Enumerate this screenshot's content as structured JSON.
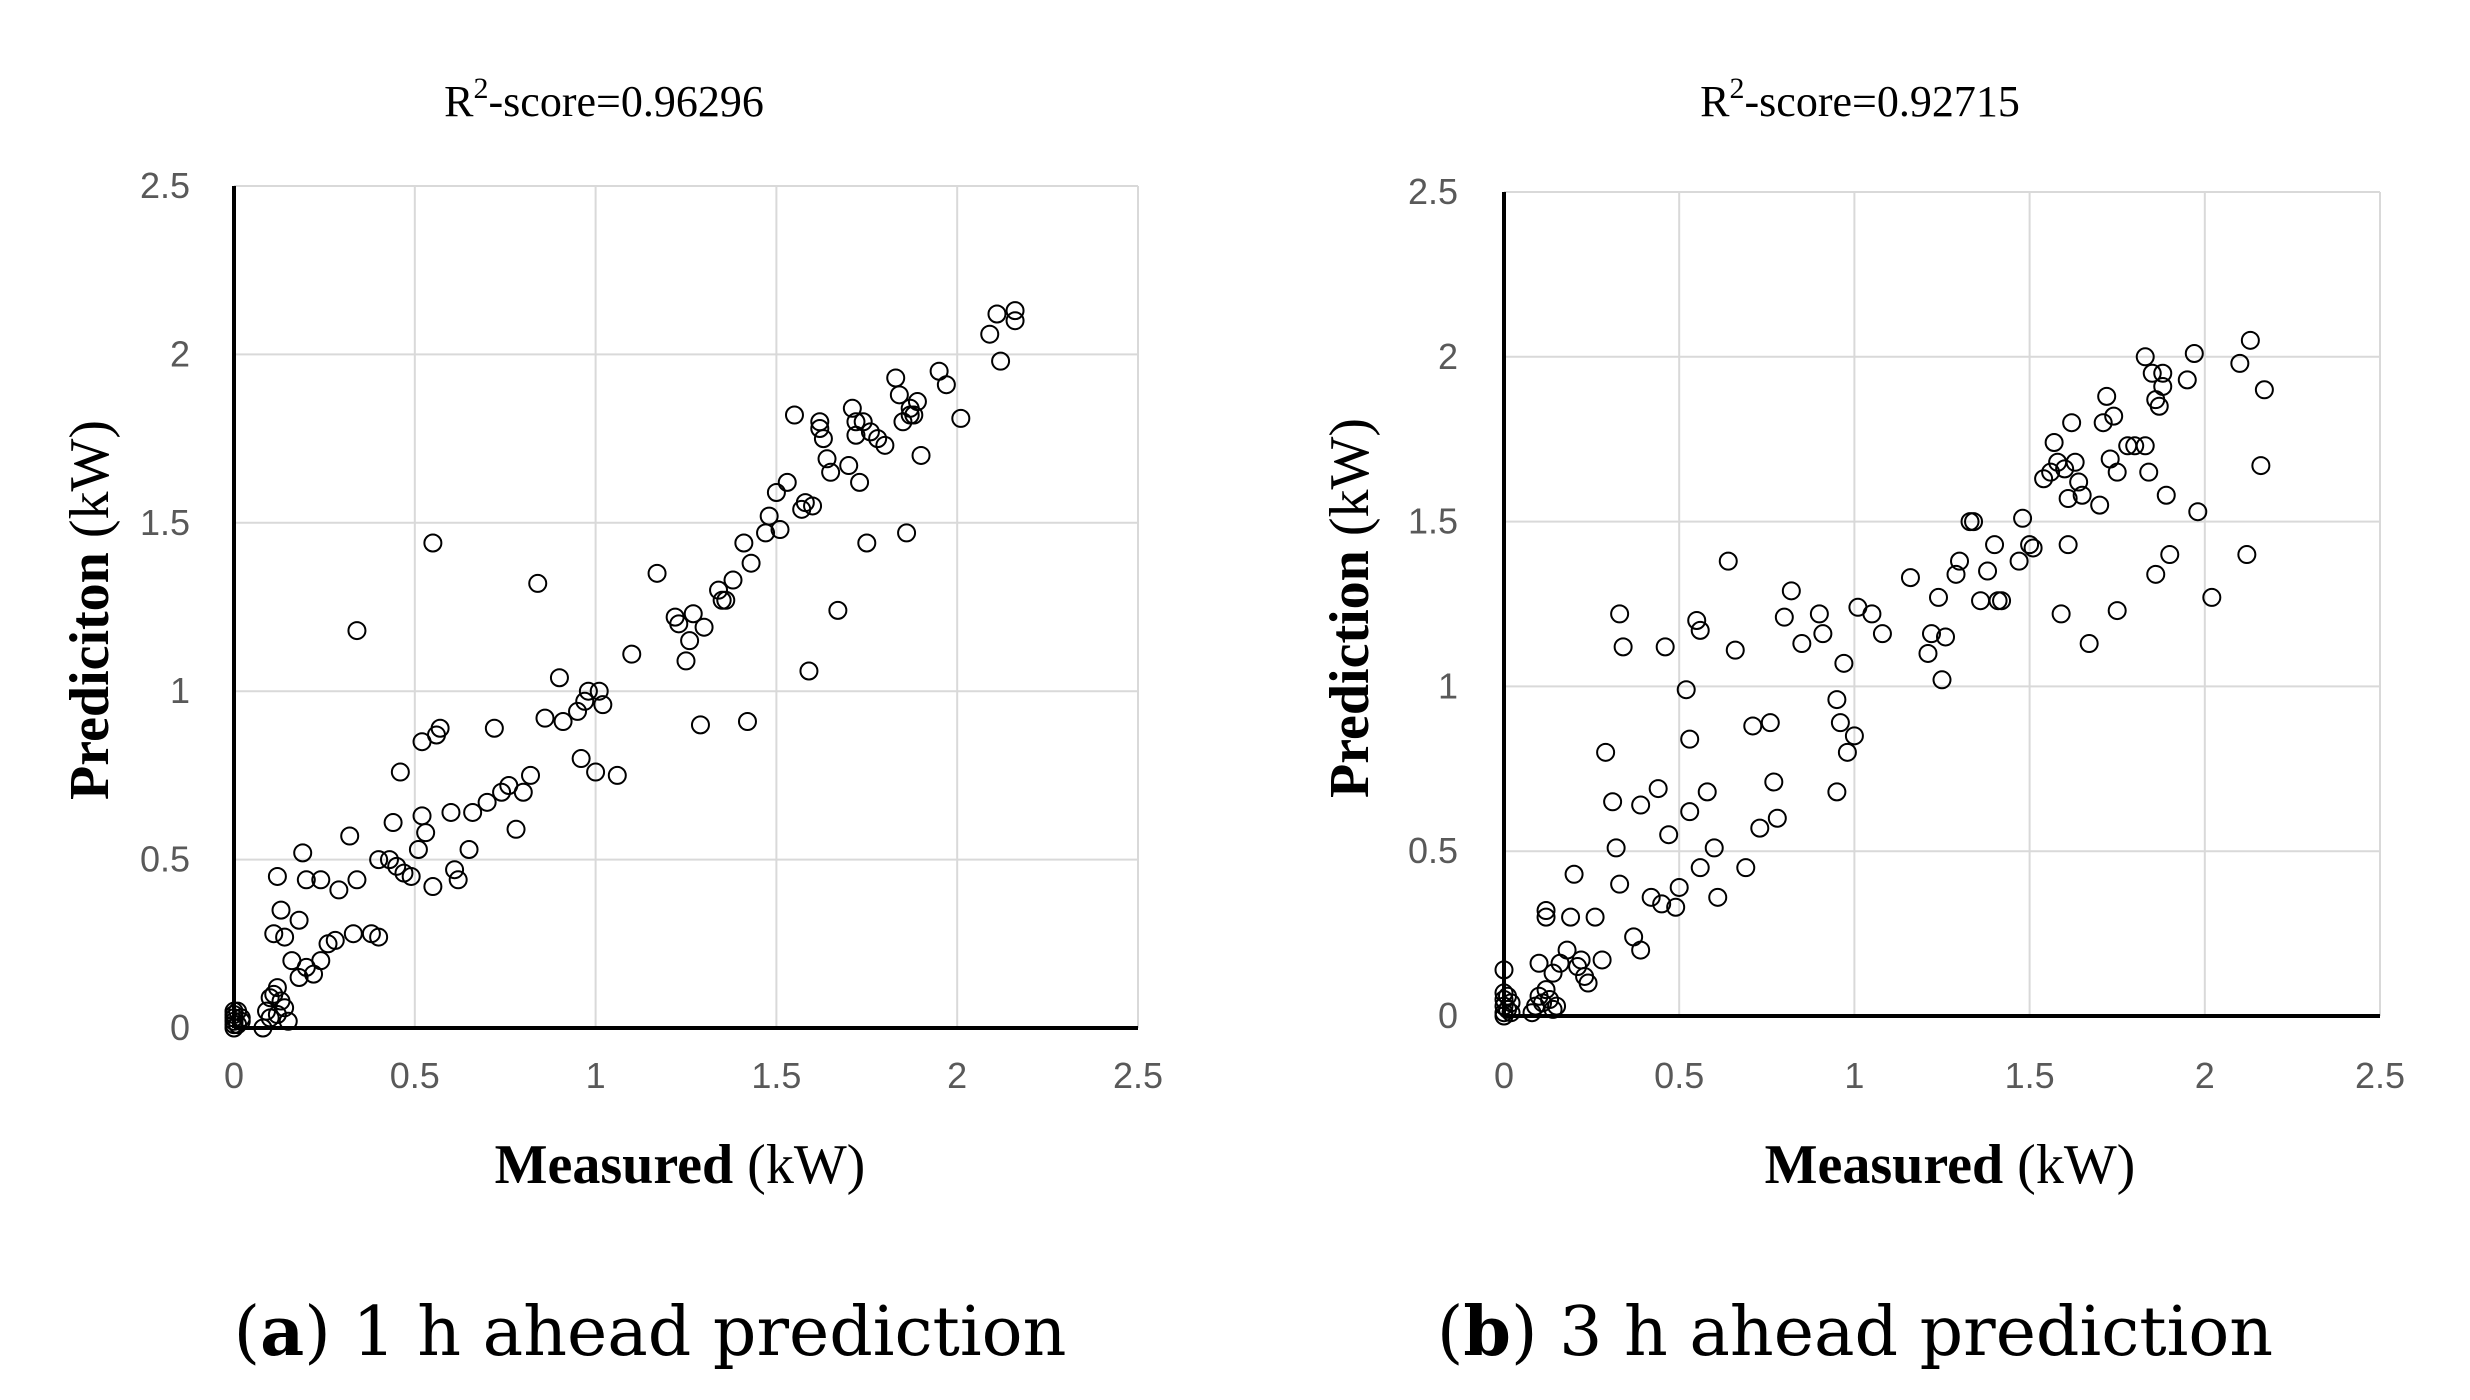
{
  "figure": {
    "captions": [
      {
        "letter": "a",
        "text": " 1 h ahead prediction"
      },
      {
        "letter": "b",
        "text": " 3 h ahead prediction"
      }
    ]
  },
  "chart_data": [
    {
      "type": "scatter",
      "panel": "a",
      "title_main": "R",
      "title_sup": "2",
      "title_rest": "-score=0.96296",
      "xlabel_bold": "Measured",
      "xlabel_unit": " (kW)",
      "ylabel_bold": "Prediciton",
      "ylabel_unit": " (kW)",
      "xlim": [
        0,
        2.5
      ],
      "ylim": [
        0,
        2.5
      ],
      "xticks": [
        "0",
        "0.5",
        "1",
        "1.5",
        "2",
        "2.5"
      ],
      "yticks": [
        "0",
        "0.5",
        "1",
        "1.5",
        "2",
        "2.5"
      ],
      "grid": true,
      "points": [
        [
          0,
          0
        ],
        [
          0,
          0.01
        ],
        [
          0,
          0.02
        ],
        [
          0,
          0.03
        ],
        [
          0,
          0.04
        ],
        [
          0.01,
          0.01
        ],
        [
          0.02,
          0.03
        ],
        [
          0.01,
          0.05
        ],
        [
          0.02,
          0.02
        ],
        [
          0,
          0.05
        ],
        [
          0.08,
          0
        ],
        [
          0.09,
          0.05
        ],
        [
          0.1,
          0.03
        ],
        [
          0.11,
          0.1
        ],
        [
          0.12,
          0.12
        ],
        [
          0.13,
          0.08
        ],
        [
          0.14,
          0.06
        ],
        [
          0.15,
          0.02
        ],
        [
          0.1,
          0.09
        ],
        [
          0.12,
          0.04
        ],
        [
          0.11,
          0.28
        ],
        [
          0.13,
          0.35
        ],
        [
          0.14,
          0.27
        ],
        [
          0.16,
          0.2
        ],
        [
          0.18,
          0.15
        ],
        [
          0.2,
          0.18
        ],
        [
          0.22,
          0.16
        ],
        [
          0.24,
          0.2
        ],
        [
          0.26,
          0.25
        ],
        [
          0.28,
          0.26
        ],
        [
          0.12,
          0.45
        ],
        [
          0.19,
          0.52
        ],
        [
          0.2,
          0.44
        ],
        [
          0.24,
          0.44
        ],
        [
          0.29,
          0.41
        ],
        [
          0.32,
          0.57
        ],
        [
          0.34,
          0.44
        ],
        [
          0.33,
          0.28
        ],
        [
          0.38,
          0.28
        ],
        [
          0.4,
          0.27
        ],
        [
          0.18,
          0.32
        ],
        [
          0.34,
          1.18
        ],
        [
          0.4,
          0.5
        ],
        [
          0.43,
          0.5
        ],
        [
          0.45,
          0.48
        ],
        [
          0.47,
          0.46
        ],
        [
          0.49,
          0.45
        ],
        [
          0.51,
          0.53
        ],
        [
          0.44,
          0.61
        ],
        [
          0.46,
          0.76
        ],
        [
          0.52,
          0.63
        ],
        [
          0.53,
          0.58
        ],
        [
          0.55,
          0.42
        ],
        [
          0.56,
          0.87
        ],
        [
          0.57,
          0.89
        ],
        [
          0.6,
          0.64
        ],
        [
          0.62,
          0.44
        ],
        [
          0.61,
          0.47
        ],
        [
          0.65,
          0.53
        ],
        [
          0.66,
          0.64
        ],
        [
          0.55,
          1.44
        ],
        [
          0.52,
          0.85
        ],
        [
          0.7,
          0.67
        ],
        [
          0.72,
          0.89
        ],
        [
          0.74,
          0.7
        ],
        [
          0.76,
          0.72
        ],
        [
          0.78,
          0.59
        ],
        [
          0.8,
          0.7
        ],
        [
          0.82,
          0.75
        ],
        [
          0.84,
          1.32
        ],
        [
          0.86,
          0.92
        ],
        [
          0.9,
          1.04
        ],
        [
          0.91,
          0.91
        ],
        [
          0.95,
          0.94
        ],
        [
          0.96,
          0.8
        ],
        [
          0.97,
          0.97
        ],
        [
          0.98,
          1.0
        ],
        [
          1.0,
          0.76
        ],
        [
          1.01,
          1.0
        ],
        [
          1.02,
          0.96
        ],
        [
          1.06,
          0.75
        ],
        [
          1.1,
          1.11
        ],
        [
          1.17,
          1.35
        ],
        [
          1.22,
          1.22
        ],
        [
          1.23,
          1.2
        ],
        [
          1.25,
          1.09
        ],
        [
          1.26,
          1.15
        ],
        [
          1.27,
          1.23
        ],
        [
          1.29,
          0.9
        ],
        [
          1.3,
          1.19
        ],
        [
          1.34,
          1.3
        ],
        [
          1.35,
          1.27
        ],
        [
          1.36,
          1.27
        ],
        [
          1.38,
          1.33
        ],
        [
          1.41,
          1.44
        ],
        [
          1.42,
          0.91
        ],
        [
          1.43,
          1.38
        ],
        [
          1.47,
          1.47
        ],
        [
          1.48,
          1.52
        ],
        [
          1.5,
          1.59
        ],
        [
          1.51,
          1.48
        ],
        [
          1.53,
          1.62
        ],
        [
          1.55,
          1.82
        ],
        [
          1.57,
          1.54
        ],
        [
          1.58,
          1.56
        ],
        [
          1.59,
          1.06
        ],
        [
          1.6,
          1.55
        ],
        [
          1.62,
          1.78
        ],
        [
          1.62,
          1.8
        ],
        [
          1.63,
          1.75
        ],
        [
          1.64,
          1.69
        ],
        [
          1.65,
          1.65
        ],
        [
          1.67,
          1.24
        ],
        [
          1.7,
          1.67
        ],
        [
          1.71,
          1.84
        ],
        [
          1.72,
          1.76
        ],
        [
          1.73,
          1.62
        ],
        [
          1.74,
          1.8
        ],
        [
          1.75,
          1.44
        ],
        [
          1.76,
          1.77
        ],
        [
          1.78,
          1.75
        ],
        [
          1.8,
          1.73
        ],
        [
          1.83,
          1.93
        ],
        [
          1.84,
          1.88
        ],
        [
          1.85,
          1.8
        ],
        [
          1.86,
          1.47
        ],
        [
          1.87,
          1.84
        ],
        [
          1.88,
          1.82
        ],
        [
          1.89,
          1.86
        ],
        [
          1.9,
          1.7
        ],
        [
          1.95,
          1.95
        ],
        [
          1.97,
          1.91
        ],
        [
          2.01,
          1.81
        ],
        [
          2.09,
          2.06
        ],
        [
          2.11,
          2.12
        ],
        [
          2.12,
          1.98
        ],
        [
          2.16,
          2.13
        ],
        [
          2.16,
          2.1
        ],
        [
          1.72,
          1.8
        ],
        [
          1.87,
          1.82
        ]
      ]
    },
    {
      "type": "scatter",
      "panel": "b",
      "title_main": "R",
      "title_sup": "2",
      "title_rest": "-score=0.92715",
      "xlabel_bold": "Measured",
      "xlabel_unit": " (kW)",
      "ylabel_bold": "Prediction",
      "ylabel_unit": " (kW)",
      "xlim": [
        0,
        2.5
      ],
      "ylim": [
        0,
        2.5
      ],
      "xticks": [
        "0",
        "0.5",
        "1",
        "1.5",
        "2",
        "2.5"
      ],
      "yticks": [
        "0",
        "0.5",
        "1",
        "1.5",
        "2",
        "2.5"
      ],
      "grid": true,
      "points": [
        [
          0,
          0
        ],
        [
          0,
          0.01
        ],
        [
          0,
          0.03
        ],
        [
          0,
          0.05
        ],
        [
          0,
          0.07
        ],
        [
          0,
          0.14
        ],
        [
          0.01,
          0.02
        ],
        [
          0.02,
          0.04
        ],
        [
          0.01,
          0.06
        ],
        [
          0.02,
          0.01
        ],
        [
          0.08,
          0.01
        ],
        [
          0.09,
          0.03
        ],
        [
          0.1,
          0.06
        ],
        [
          0.11,
          0.04
        ],
        [
          0.12,
          0.08
        ],
        [
          0.13,
          0.05
        ],
        [
          0.14,
          0.02
        ],
        [
          0.15,
          0.03
        ],
        [
          0.1,
          0.16
        ],
        [
          0.12,
          0.32
        ],
        [
          0.12,
          0.3
        ],
        [
          0.14,
          0.13
        ],
        [
          0.16,
          0.16
        ],
        [
          0.18,
          0.2
        ],
        [
          0.19,
          0.3
        ],
        [
          0.2,
          0.43
        ],
        [
          0.21,
          0.15
        ],
        [
          0.22,
          0.17
        ],
        [
          0.23,
          0.12
        ],
        [
          0.24,
          0.1
        ],
        [
          0.26,
          0.3
        ],
        [
          0.28,
          0.17
        ],
        [
          0.29,
          0.8
        ],
        [
          0.31,
          0.65
        ],
        [
          0.32,
          0.51
        ],
        [
          0.33,
          1.22
        ],
        [
          0.34,
          1.12
        ],
        [
          0.33,
          0.4
        ],
        [
          0.37,
          0.24
        ],
        [
          0.39,
          0.2
        ],
        [
          0.39,
          0.64
        ],
        [
          0.42,
          0.36
        ],
        [
          0.44,
          0.69
        ],
        [
          0.45,
          0.34
        ],
        [
          0.46,
          1.12
        ],
        [
          0.47,
          0.55
        ],
        [
          0.49,
          0.33
        ],
        [
          0.5,
          0.39
        ],
        [
          0.52,
          0.99
        ],
        [
          0.53,
          0.84
        ],
        [
          0.53,
          0.62
        ],
        [
          0.55,
          1.2
        ],
        [
          0.56,
          1.17
        ],
        [
          0.56,
          0.45
        ],
        [
          0.58,
          0.68
        ],
        [
          0.6,
          0.51
        ],
        [
          0.61,
          0.36
        ],
        [
          0.64,
          1.38
        ],
        [
          0.66,
          1.11
        ],
        [
          0.69,
          0.45
        ],
        [
          0.71,
          0.88
        ],
        [
          0.73,
          0.57
        ],
        [
          0.76,
          0.89
        ],
        [
          0.77,
          0.71
        ],
        [
          0.78,
          0.6
        ],
        [
          0.8,
          1.21
        ],
        [
          0.82,
          1.29
        ],
        [
          0.85,
          1.13
        ],
        [
          0.9,
          1.22
        ],
        [
          0.91,
          1.16
        ],
        [
          0.95,
          0.96
        ],
        [
          0.96,
          0.89
        ],
        [
          0.95,
          0.68
        ],
        [
          0.97,
          1.07
        ],
        [
          0.98,
          0.8
        ],
        [
          1.0,
          0.85
        ],
        [
          1.01,
          1.24
        ],
        [
          1.05,
          1.22
        ],
        [
          1.08,
          1.16
        ],
        [
          1.16,
          1.33
        ],
        [
          1.21,
          1.1
        ],
        [
          1.22,
          1.16
        ],
        [
          1.24,
          1.27
        ],
        [
          1.25,
          1.02
        ],
        [
          1.26,
          1.15
        ],
        [
          1.29,
          1.34
        ],
        [
          1.3,
          1.38
        ],
        [
          1.33,
          1.5
        ],
        [
          1.34,
          1.5
        ],
        [
          1.36,
          1.26
        ],
        [
          1.38,
          1.35
        ],
        [
          1.4,
          1.43
        ],
        [
          1.41,
          1.26
        ],
        [
          1.42,
          1.26
        ],
        [
          1.47,
          1.38
        ],
        [
          1.48,
          1.51
        ],
        [
          1.5,
          1.43
        ],
        [
          1.51,
          1.42
        ],
        [
          1.54,
          1.63
        ],
        [
          1.56,
          1.65
        ],
        [
          1.57,
          1.74
        ],
        [
          1.58,
          1.68
        ],
        [
          1.59,
          1.22
        ],
        [
          1.6,
          1.66
        ],
        [
          1.61,
          1.57
        ],
        [
          1.61,
          1.43
        ],
        [
          1.62,
          1.8
        ],
        [
          1.63,
          1.68
        ],
        [
          1.64,
          1.62
        ],
        [
          1.65,
          1.58
        ],
        [
          1.67,
          1.13
        ],
        [
          1.7,
          1.55
        ],
        [
          1.71,
          1.8
        ],
        [
          1.72,
          1.88
        ],
        [
          1.73,
          1.69
        ],
        [
          1.74,
          1.82
        ],
        [
          1.75,
          1.23
        ],
        [
          1.75,
          1.65
        ],
        [
          1.78,
          1.73
        ],
        [
          1.8,
          1.73
        ],
        [
          1.83,
          2.0
        ],
        [
          1.84,
          1.65
        ],
        [
          1.85,
          1.95
        ],
        [
          1.86,
          1.34
        ],
        [
          1.87,
          1.85
        ],
        [
          1.88,
          1.91
        ],
        [
          1.89,
          1.58
        ],
        [
          1.9,
          1.4
        ],
        [
          1.95,
          1.93
        ],
        [
          1.97,
          2.01
        ],
        [
          1.98,
          1.53
        ],
        [
          2.02,
          1.27
        ],
        [
          2.1,
          1.98
        ],
        [
          2.12,
          1.4
        ],
        [
          2.13,
          2.05
        ],
        [
          2.16,
          1.67
        ],
        [
          2.17,
          1.9
        ],
        [
          1.83,
          1.73
        ],
        [
          1.88,
          1.95
        ],
        [
          1.86,
          1.87
        ]
      ]
    }
  ]
}
